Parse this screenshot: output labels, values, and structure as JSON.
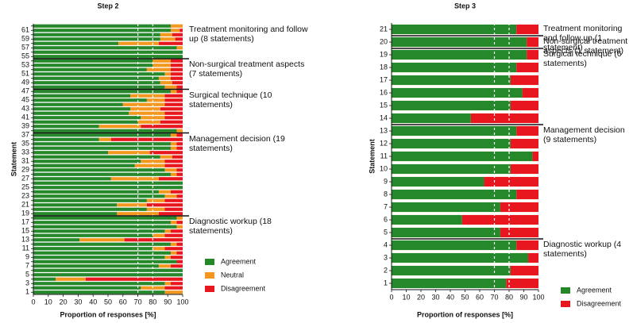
{
  "chart_data": [
    {
      "type": "bar",
      "orientation": "horizontal",
      "stacked": true,
      "title": "Step 2",
      "xlabel": "Proportion of responses [%]",
      "ylabel": "Statement",
      "categories": [
        "1",
        null,
        "3",
        null,
        "5",
        null,
        "7",
        null,
        "9",
        null,
        "11",
        null,
        "13",
        null,
        "15",
        null,
        "17",
        null,
        "19",
        null,
        "21",
        null,
        "23",
        null,
        "25",
        null,
        "27",
        null,
        "29",
        null,
        "31",
        null,
        "33",
        null,
        "35",
        null,
        "37",
        null,
        "39",
        null,
        "41",
        null,
        "43",
        null,
        "45",
        null,
        "47",
        null,
        "49",
        null,
        "51",
        null,
        "53",
        null,
        "55",
        null,
        "57",
        null,
        "59",
        null,
        "61",
        null
      ],
      "series": [
        {
          "name": "Agreement",
          "color": "#25882a",
          "values": [
            88,
            72,
            88,
            15,
            100,
            100,
            84,
            96,
            88,
            92,
            80,
            92,
            31,
            80,
            88,
            96,
            92,
            96,
            56,
            76,
            56,
            76,
            88,
            84,
            100,
            100,
            52,
            92,
            88,
            68,
            72,
            85,
            50,
            92,
            92,
            44,
            92,
            96,
            44,
            70,
            72,
            64,
            65,
            60,
            76,
            65,
            92,
            88,
            85,
            84,
            88,
            76,
            80,
            80,
            100,
            100,
            96,
            57,
            85,
            85,
            92,
            92
          ]
        },
        {
          "name": "Neutral",
          "color": "#f3981f",
          "values": [
            12,
            16,
            4,
            20,
            0,
            0,
            8,
            0,
            4,
            4,
            8,
            4,
            30,
            8,
            4,
            4,
            4,
            4,
            28,
            12,
            20,
            12,
            8,
            8,
            0,
            0,
            32,
            4,
            8,
            20,
            16,
            8,
            28,
            4,
            4,
            8,
            4,
            4,
            28,
            15,
            16,
            24,
            20,
            28,
            12,
            23,
            4,
            8,
            8,
            8,
            4,
            16,
            12,
            12,
            0,
            0,
            4,
            27,
            10,
            8,
            6,
            8
          ]
        },
        {
          "name": "Disagreement",
          "color": "#e8171f",
          "values": [
            0,
            12,
            8,
            65,
            0,
            0,
            8,
            4,
            8,
            4,
            12,
            4,
            39,
            12,
            8,
            0,
            4,
            0,
            16,
            12,
            24,
            12,
            4,
            8,
            0,
            0,
            16,
            4,
            4,
            12,
            12,
            7,
            22,
            4,
            4,
            48,
            4,
            0,
            28,
            15,
            12,
            12,
            15,
            12,
            12,
            12,
            4,
            4,
            7,
            8,
            8,
            8,
            8,
            8,
            0,
            0,
            0,
            16,
            5,
            7,
            2,
            0
          ]
        }
      ],
      "groups": [
        {
          "label": "Diagnostic workup (18 statements)",
          "count": 18
        },
        {
          "label": "Management decision (19 statements)",
          "count": 19
        },
        {
          "label": "Surgical technique (10 statements)",
          "count": 10
        },
        {
          "label": "Non-surgical treatment aspects (7 statements)",
          "count": 7
        },
        {
          "label": "Treatment monitoring and follow up (8 statements)",
          "count": 8
        }
      ],
      "reference_lines": [
        70,
        80
      ],
      "xlim": [
        0,
        100
      ],
      "xticks": [
        0,
        10,
        20,
        30,
        40,
        50,
        60,
        70,
        80,
        90,
        100
      ],
      "legend": "lower right"
    },
    {
      "type": "bar",
      "orientation": "horizontal",
      "stacked": true,
      "title": "Step 3",
      "xlabel": "Proportion of responses [%]",
      "ylabel": "Statement",
      "categories": [
        "1",
        "2",
        "3",
        "4",
        "5",
        "6",
        "7",
        "8",
        "9",
        "10",
        "11",
        "12",
        "13",
        "14",
        "15",
        "16",
        "17",
        "18",
        "19",
        "20",
        "21"
      ],
      "series": [
        {
          "name": "Agreement",
          "color": "#25882a",
          "values": [
            78,
            81,
            93,
            85,
            74,
            48,
            74,
            85,
            63,
            81,
            96,
            81,
            85,
            54,
            81,
            89,
            81,
            85,
            92,
            92,
            85
          ]
        },
        {
          "name": "Disagreement",
          "color": "#e8171f",
          "values": [
            22,
            19,
            7,
            15,
            26,
            52,
            26,
            15,
            37,
            19,
            4,
            19,
            15,
            46,
            19,
            11,
            19,
            15,
            8,
            8,
            15
          ]
        }
      ],
      "groups": [
        {
          "label": "Diagnostic workup (4 statements)",
          "count": 4
        },
        {
          "label": "Management decision (9 statements)",
          "count": 9
        },
        {
          "label": "Surgical technique (6 statements)",
          "count": 6
        },
        {
          "label": "Non-surgical treatment aspects (1 statement)",
          "count": 1
        },
        {
          "label": "Treatment monitoring and follow up (1 statement)",
          "count": 1
        }
      ],
      "reference_lines": [
        70,
        80
      ],
      "xlim": [
        0,
        100
      ],
      "xticks": [
        0,
        10,
        20,
        30,
        40,
        50,
        60,
        70,
        80,
        90,
        100
      ],
      "legend": "lower right"
    }
  ]
}
